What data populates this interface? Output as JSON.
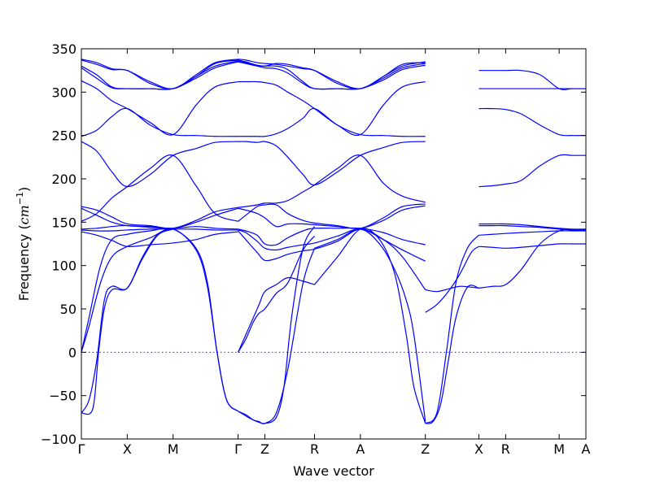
{
  "chart_data": {
    "type": "line",
    "xlabel": "Wave vector",
    "ylabel": "Frequency (cm⁻¹)",
    "ylabel_plain": "Frequency (",
    "ylabel_unit": "cm",
    "ylabel_exp": "−1",
    "ylabel_close": ")",
    "ylim": [
      -100,
      350
    ],
    "yticks": [
      -100,
      -50,
      0,
      50,
      100,
      150,
      200,
      250,
      300,
      350
    ],
    "ytick_labels": [
      "−100",
      "−50",
      "0",
      "50",
      "100",
      "150",
      "200",
      "250",
      "300",
      "350"
    ],
    "xlim": [
      0,
      13.2
    ],
    "path_points": [
      {
        "label": "Γ",
        "x": 0
      },
      {
        "label": "X",
        "x": 1.2
      },
      {
        "label": "M",
        "x": 2.4
      },
      {
        "label": "Γ",
        "x": 4.1
      },
      {
        "label": "Z",
        "x": 4.8
      },
      {
        "label": "R",
        "x": 6.1
      },
      {
        "label": "A",
        "x": 7.3
      },
      {
        "label": "Z",
        "x": 9.0
      },
      {
        "label": "X",
        "x": 10.4
      },
      {
        "label": "R",
        "x": 11.1
      },
      {
        "label": "M",
        "x": 12.5
      },
      {
        "label": "A",
        "x": 13.2
      }
    ],
    "line_color": "#0000ff",
    "zero_line": true,
    "grid": false,
    "series": [
      {
        "x": [
          0,
          0.4,
          0.8,
          1.2,
          1.8,
          2.4,
          3.0,
          3.5,
          4.1
        ],
        "y": [
          338,
          334,
          327,
          325,
          312,
          304,
          320,
          334,
          338
        ]
      },
      {
        "x": [
          0,
          0.4,
          0.8,
          1.2,
          1.8,
          2.4,
          3.0,
          3.5,
          4.1
        ],
        "y": [
          337,
          332,
          326,
          325,
          310,
          304,
          318,
          333,
          337
        ]
      },
      {
        "x": [
          0,
          0.4,
          0.8,
          1.2,
          1.8,
          2.4,
          3.0,
          3.5,
          4.1
        ],
        "y": [
          330,
          320,
          306,
          304,
          304,
          304,
          318,
          330,
          336
        ]
      },
      {
        "x": [
          0,
          0.4,
          0.8,
          1.2,
          1.8,
          2.4,
          3.0,
          3.5,
          4.1
        ],
        "y": [
          328,
          316,
          305,
          304,
          304,
          304,
          316,
          328,
          335
        ]
      },
      {
        "x": [
          0,
          0.4,
          0.8,
          1.2,
          1.8,
          2.4,
          3.0,
          3.5,
          4.1
        ],
        "y": [
          313,
          304,
          290,
          281,
          265,
          251,
          285,
          306,
          312
        ]
      },
      {
        "x": [
          0,
          0.4,
          0.8,
          1.2,
          1.8,
          2.4,
          3.0,
          3.5,
          4.1
        ],
        "y": [
          249,
          256,
          272,
          281,
          262,
          251,
          250,
          249,
          249
        ]
      },
      {
        "x": [
          0,
          0.4,
          0.8,
          1.2,
          1.8,
          2.4,
          3.0,
          3.5,
          4.1
        ],
        "y": [
          243,
          232,
          208,
          191,
          205,
          227,
          235,
          242,
          243
        ]
      },
      {
        "x": [
          0,
          0.4,
          0.8,
          1.2,
          1.8,
          2.4,
          3.0,
          3.5,
          4.1
        ],
        "y": [
          151,
          160,
          178,
          191,
          212,
          227,
          192,
          160,
          151
        ]
      },
      {
        "x": [
          0,
          0.4,
          0.8,
          1.2,
          1.8,
          2.4,
          3.0,
          3.5,
          4.1
        ],
        "y": [
          168,
          164,
          156,
          148,
          146,
          143,
          152,
          162,
          167
        ]
      },
      {
        "x": [
          0,
          0.4,
          0.8,
          1.2,
          1.8,
          2.4,
          3.0,
          3.5,
          4.1
        ],
        "y": [
          166,
          158,
          150,
          146,
          145,
          143,
          150,
          158,
          166
        ]
      },
      {
        "x": [
          0,
          0.4,
          0.8,
          1.2,
          1.8,
          2.4,
          3.0,
          3.5,
          4.1
        ],
        "y": [
          142,
          143,
          145,
          146,
          144,
          143,
          145,
          143,
          142
        ]
      },
      {
        "x": [
          0,
          0.4,
          0.8,
          1.2,
          1.8,
          2.4,
          3.0,
          3.5,
          4.1
        ],
        "y": [
          141,
          140,
          140,
          141,
          142,
          142,
          142,
          141,
          141
        ]
      },
      {
        "x": [
          0,
          0.4,
          0.8,
          1.2,
          1.8,
          2.4,
          3.0,
          3.5,
          4.1
        ],
        "y": [
          139,
          135,
          129,
          122,
          124,
          126,
          130,
          136,
          139
        ]
      },
      {
        "x": [
          0,
          0.2,
          0.5,
          0.8,
          1.2,
          1.8,
          2.4,
          3.0,
          3.3,
          3.55,
          3.8,
          4.1
        ],
        "y": [
          0,
          40,
          100,
          130,
          136,
          140,
          142,
          120,
          80,
          0,
          -55,
          -68
        ]
      },
      {
        "x": [
          0,
          0.2,
          0.5,
          0.8,
          1.2,
          1.8,
          2.4,
          3.0,
          3.3,
          3.55,
          3.8,
          4.1
        ],
        "y": [
          0,
          30,
          80,
          110,
          122,
          132,
          142,
          118,
          75,
          0,
          -55,
          -68
        ]
      },
      {
        "x": [
          0,
          0.2,
          0.4,
          0.6,
          0.8,
          1.2,
          1.6,
          2.0,
          2.4
        ],
        "y": [
          -70,
          -55,
          -10,
          60,
          76,
          74,
          110,
          136,
          142
        ]
      },
      {
        "x": [
          0,
          0.3,
          0.45,
          0.6,
          0.8,
          1.2,
          1.6,
          2.0,
          2.4
        ],
        "y": [
          -70,
          -65,
          0,
          50,
          72,
          74,
          108,
          135,
          142
        ]
      },
      {
        "x": [
          4.1,
          4.3,
          4.6,
          4.8,
          5.1,
          5.4,
          5.8,
          6.1,
          6.7,
          7.3,
          7.9,
          8.4,
          9.0
        ],
        "y": [
          338,
          337,
          334,
          333,
          332,
          330,
          327,
          325,
          312,
          304,
          318,
          330,
          335
        ]
      },
      {
        "x": [
          4.1,
          4.3,
          4.6,
          4.8,
          5.1,
          5.4,
          5.8,
          6.1,
          6.7,
          7.3,
          7.9,
          8.4,
          9.0
        ],
        "y": [
          337,
          335,
          331,
          330,
          333,
          332,
          328,
          325,
          310,
          304,
          318,
          332,
          334
        ]
      },
      {
        "x": [
          4.1,
          4.3,
          4.6,
          4.8,
          5.1,
          5.4,
          5.8,
          6.1,
          6.7,
          7.3,
          7.9,
          8.4,
          9.0
        ],
        "y": [
          336,
          334,
          331,
          330,
          330,
          326,
          312,
          304,
          304,
          304,
          316,
          328,
          333
        ]
      },
      {
        "x": [
          4.1,
          4.3,
          4.6,
          4.8,
          5.1,
          5.4,
          5.8,
          6.1,
          6.7,
          7.3,
          7.9,
          8.4,
          9.0
        ],
        "y": [
          335,
          333,
          330,
          328,
          327,
          322,
          310,
          304,
          304,
          304,
          314,
          326,
          331
        ]
      },
      {
        "x": [
          4.1,
          4.3,
          4.6,
          4.8,
          5.1,
          5.4,
          5.8,
          6.1,
          6.7,
          7.3,
          7.9,
          8.4,
          9.0
        ],
        "y": [
          312,
          312,
          312,
          311,
          308,
          300,
          290,
          281,
          262,
          251,
          285,
          306,
          312
        ]
      },
      {
        "x": [
          4.1,
          4.3,
          4.6,
          4.8,
          5.1,
          5.4,
          5.8,
          6.1,
          6.7,
          7.3,
          7.9,
          8.4,
          9.0
        ],
        "y": [
          249,
          249,
          249,
          249,
          252,
          258,
          270,
          281,
          262,
          251,
          250,
          249,
          249
        ]
      },
      {
        "x": [
          4.1,
          4.3,
          4.6,
          4.8,
          5.1,
          5.4,
          5.8,
          6.1,
          6.7,
          7.3,
          7.9,
          8.4,
          9.0
        ],
        "y": [
          243,
          243,
          242,
          243,
          238,
          225,
          205,
          193,
          208,
          227,
          236,
          242,
          243
        ]
      },
      {
        "x": [
          4.1,
          4.3,
          4.6,
          4.8,
          5.1,
          5.4,
          5.8,
          6.1,
          6.7,
          7.3,
          7.9,
          8.4,
          9.0
        ],
        "y": [
          167,
          168,
          170,
          172,
          172,
          175,
          185,
          193,
          212,
          227,
          195,
          180,
          173
        ]
      },
      {
        "x": [
          4.1,
          4.3,
          4.6,
          4.8,
          5.1,
          5.4,
          5.8,
          6.1,
          6.7,
          7.3,
          7.9,
          8.4,
          9.0
        ],
        "y": [
          151,
          158,
          168,
          170,
          170,
          160,
          152,
          149,
          146,
          143,
          155,
          168,
          171
        ]
      },
      {
        "x": [
          4.1,
          4.3,
          4.6,
          4.8,
          5.1,
          5.4,
          5.8,
          6.1,
          6.7,
          7.3,
          7.9,
          8.4,
          9.0
        ],
        "y": [
          166,
          164,
          160,
          155,
          145,
          148,
          148,
          147,
          145,
          143,
          152,
          164,
          169
        ]
      },
      {
        "x": [
          4.1,
          4.3,
          4.6,
          4.8,
          5.1,
          5.4,
          5.8,
          6.1,
          6.7,
          7.3,
          7.9,
          8.4,
          9.0
        ],
        "y": [
          142,
          140,
          135,
          125,
          124,
          132,
          140,
          143,
          143,
          143,
          138,
          130,
          124
        ]
      },
      {
        "x": [
          4.1,
          4.3,
          4.6,
          4.8,
          5.1,
          5.4,
          5.8,
          6.1,
          6.7,
          7.3,
          7.9,
          8.4,
          9.0
        ],
        "y": [
          141,
          138,
          128,
          120,
          118,
          121,
          124,
          126,
          134,
          142,
          130,
          118,
          105
        ]
      },
      {
        "x": [
          4.1,
          4.3,
          4.6,
          4.8,
          5.1,
          5.4,
          5.8,
          6.1,
          6.7,
          7.3,
          7.9,
          8.4,
          9.0
        ],
        "y": [
          140,
          130,
          115,
          106,
          108,
          113,
          117,
          119,
          128,
          142,
          130,
          110,
          72
        ]
      },
      {
        "x": [
          4.1,
          4.3,
          4.5,
          4.65,
          4.8,
          5.1,
          5.4,
          5.8,
          6.1
        ],
        "y": [
          0,
          20,
          40,
          55,
          70,
          78,
          86,
          82,
          78
        ]
      },
      {
        "x": [
          4.1,
          4.3,
          4.5,
          4.65,
          4.8,
          5.1,
          5.4,
          5.8,
          6.1
        ],
        "y": [
          0,
          15,
          35,
          45,
          50,
          68,
          80,
          118,
          134
        ]
      },
      {
        "x": [
          4.1,
          4.3,
          4.5,
          4.65,
          4.8,
          5.1,
          5.4,
          5.8,
          6.1
        ],
        "y": [
          -68,
          -72,
          -78,
          -80,
          -82,
          -70,
          -20,
          80,
          120
        ]
      },
      {
        "x": [
          4.1,
          4.4,
          4.6,
          4.8,
          5.1,
          5.3,
          5.5,
          5.8,
          6.1
        ],
        "y": [
          -68,
          -76,
          -80,
          -82,
          -75,
          -40,
          40,
          120,
          145
        ]
      },
      {
        "x": [
          6.1,
          6.7,
          7.3,
          7.8,
          8.2,
          8.5,
          8.7,
          9.0
        ],
        "y": [
          78,
          110,
          142,
          130,
          90,
          20,
          -40,
          -82
        ]
      },
      {
        "x": [
          6.1,
          6.7,
          7.3,
          7.8,
          8.2,
          8.5,
          8.7,
          9.0
        ],
        "y": [
          120,
          130,
          142,
          125,
          95,
          60,
          20,
          -80
        ]
      },
      {
        "x": [
          9.0,
          9.2,
          9.4,
          9.6,
          9.8,
          10.1,
          10.4
        ],
        "y": [
          -82,
          -80,
          -60,
          -10,
          40,
          75,
          74
        ]
      },
      {
        "x": [
          9.0,
          9.3,
          9.55,
          9.8,
          10.1,
          10.4
        ],
        "y": [
          -82,
          -70,
          0,
          80,
          120,
          135
        ]
      },
      {
        "x": [
          9.0,
          9.3,
          9.6,
          9.9,
          10.2,
          10.4
        ],
        "y": [
          46,
          55,
          70,
          90,
          115,
          122
        ]
      },
      {
        "x": [
          9.0,
          9.3,
          9.6,
          9.9,
          10.2,
          10.4
        ],
        "y": [
          72,
          70,
          73,
          76,
          75,
          74
        ]
      },
      {
        "x": [
          10.4,
          10.75,
          11.1,
          11.5,
          12.0,
          12.5,
          12.85,
          13.2
        ],
        "y": [
          325,
          325,
          325,
          325,
          320,
          304,
          304,
          304
        ]
      },
      {
        "x": [
          10.4,
          10.75,
          11.1,
          11.5,
          12.0,
          12.5,
          12.85,
          13.2
        ],
        "y": [
          304,
          304,
          304,
          304,
          304,
          304,
          304,
          304
        ]
      },
      {
        "x": [
          10.4,
          10.75,
          11.1,
          11.5,
          12.0,
          12.5,
          12.85,
          13.2
        ],
        "y": [
          281,
          281,
          280,
          275,
          262,
          251,
          250,
          250
        ]
      },
      {
        "x": [
          10.4,
          10.75,
          11.1,
          11.5,
          12.0,
          12.5,
          12.85,
          13.2
        ],
        "y": [
          191,
          192,
          194,
          198,
          215,
          227,
          227,
          227
        ]
      },
      {
        "x": [
          10.4,
          10.75,
          11.1,
          11.5,
          12.0,
          12.5,
          12.85,
          13.2
        ],
        "y": [
          148,
          148,
          148,
          147,
          145,
          143,
          142,
          142
        ]
      },
      {
        "x": [
          10.4,
          10.75,
          11.1,
          11.5,
          12.0,
          12.5,
          12.85,
          13.2
        ],
        "y": [
          146,
          146,
          146,
          145,
          144,
          142,
          141,
          141
        ]
      },
      {
        "x": [
          10.4,
          10.75,
          11.1,
          11.5,
          12.0,
          12.5,
          12.85,
          13.2
        ],
        "y": [
          135,
          136,
          137,
          138,
          139,
          140,
          140,
          140
        ]
      },
      {
        "x": [
          10.4,
          10.75,
          11.1,
          11.5,
          12.0,
          12.5,
          12.85,
          13.2
        ],
        "y": [
          122,
          121,
          120,
          121,
          123,
          125,
          125,
          125
        ]
      },
      {
        "x": [
          10.4,
          10.75,
          11.1,
          11.5,
          12.0,
          12.5,
          12.85,
          13.2
        ],
        "y": [
          74,
          76,
          78,
          95,
          125,
          140,
          141,
          141
        ]
      }
    ]
  }
}
